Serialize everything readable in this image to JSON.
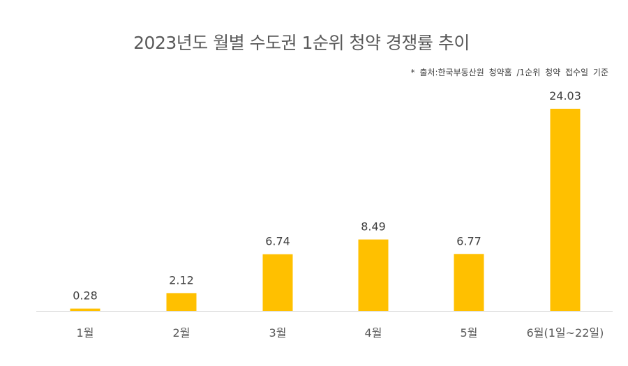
{
  "chart_data": {
    "type": "bar",
    "title": "2023년도 월별 수도권 1순위 청약 경쟁률 추이",
    "note": "* 출처:한국부동산원 청약홈 /1순위 청약 접수일 기준",
    "categories": [
      "1월",
      "2월",
      "3월",
      "4월",
      "5월",
      "6월(1일~22일)"
    ],
    "values": [
      0.28,
      2.12,
      6.74,
      8.49,
      6.77,
      24.03
    ],
    "data_labels": [
      "0.28",
      "2.12",
      "6.74",
      "8.49",
      "6.77",
      "24.03"
    ],
    "ylim": [
      0,
      24.03
    ],
    "grid": false,
    "legend": "none",
    "bar_color": "#FFC000",
    "axis_color": "#D9D9D9"
  }
}
